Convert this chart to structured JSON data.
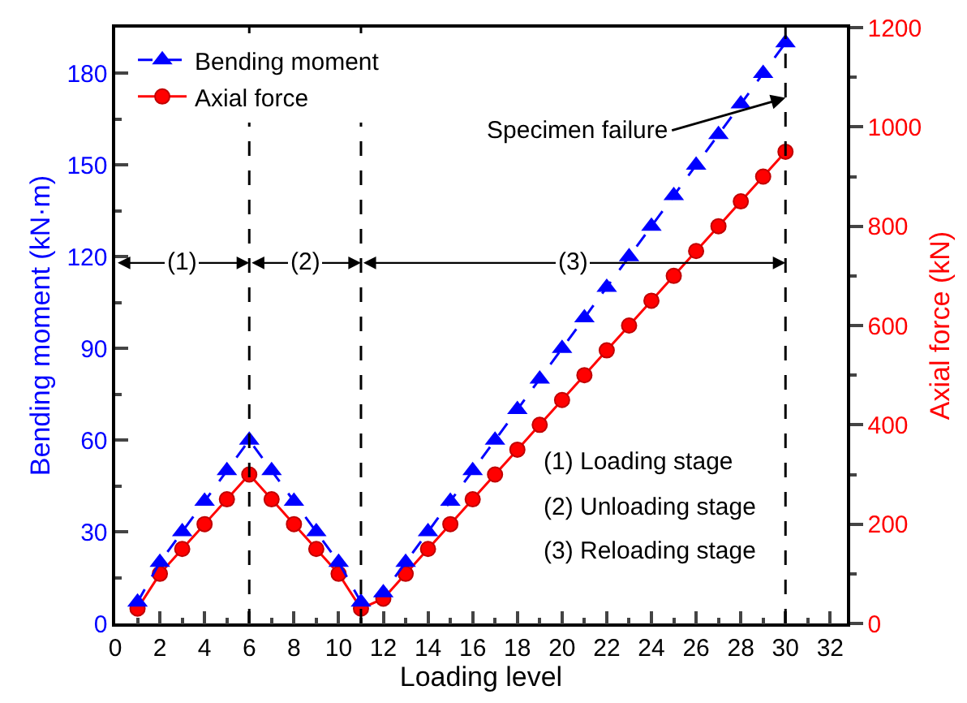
{
  "chart_data": {
    "type": "line",
    "xlabel": "Loading level",
    "ylabel": "Bending moment (kN·m)",
    "y2label": "Axial force (kN)",
    "x": [
      1,
      2,
      3,
      4,
      5,
      6,
      7,
      8,
      9,
      10,
      11,
      12,
      13,
      14,
      15,
      16,
      17,
      18,
      19,
      20,
      21,
      22,
      23,
      24,
      25,
      26,
      27,
      28,
      29,
      30
    ],
    "series": [
      {
        "name": "Bending moment",
        "color": "#0000ff",
        "marker": "triangle",
        "line_style": "dashed",
        "values": [
          7,
          20,
          30,
          40,
          50,
          60,
          50,
          40,
          30,
          20,
          7,
          10,
          20,
          30,
          40,
          50,
          60,
          70,
          80,
          90,
          100,
          110,
          120,
          130,
          140,
          150,
          160,
          170,
          180,
          190
        ]
      },
      {
        "name": "Axial force",
        "color": "#ff0000",
        "marker": "circle",
        "line_style": "solid",
        "axis": "y2",
        "values": [
          30,
          100,
          150,
          200,
          250,
          300,
          250,
          200,
          150,
          100,
          30,
          50,
          100,
          150,
          200,
          250,
          300,
          350,
          400,
          450,
          500,
          550,
          600,
          650,
          700,
          750,
          800,
          850,
          900,
          950
        ]
      }
    ],
    "xlim": [
      0,
      32.75
    ],
    "xticks": [
      0,
      2,
      4,
      6,
      8,
      10,
      12,
      14,
      16,
      18,
      20,
      22,
      24,
      26,
      28,
      30,
      32
    ],
    "ylim": [
      0,
      195
    ],
    "yticks": [
      0,
      30,
      60,
      90,
      120,
      150,
      180
    ],
    "y2lim": [
      0,
      1200
    ],
    "y2ticks": [
      0,
      200,
      400,
      600,
      800,
      1000,
      1200
    ],
    "ref_lines": [
      {
        "axis": "x",
        "value": 6,
        "color": "#000000",
        "line_style": "dashed"
      },
      {
        "axis": "x",
        "value": 11,
        "color": "#000000",
        "line_style": "dashed"
      },
      {
        "axis": "x",
        "value": 30,
        "color": "#000000",
        "line_style": "dashed"
      }
    ],
    "annotations": [
      {
        "text": "(1)",
        "x": 3,
        "y": 118
      },
      {
        "text": "(2)",
        "x": 8.5,
        "y": 118
      },
      {
        "text": "(3)",
        "x": 20.5,
        "y": 118
      },
      {
        "text": "Specimen failure",
        "x": 30,
        "y": 172
      },
      "(1) Loading stage",
      "(2) Unloading stage",
      "(3) Reloading stage"
    ],
    "grid": false,
    "legend": "top left"
  }
}
